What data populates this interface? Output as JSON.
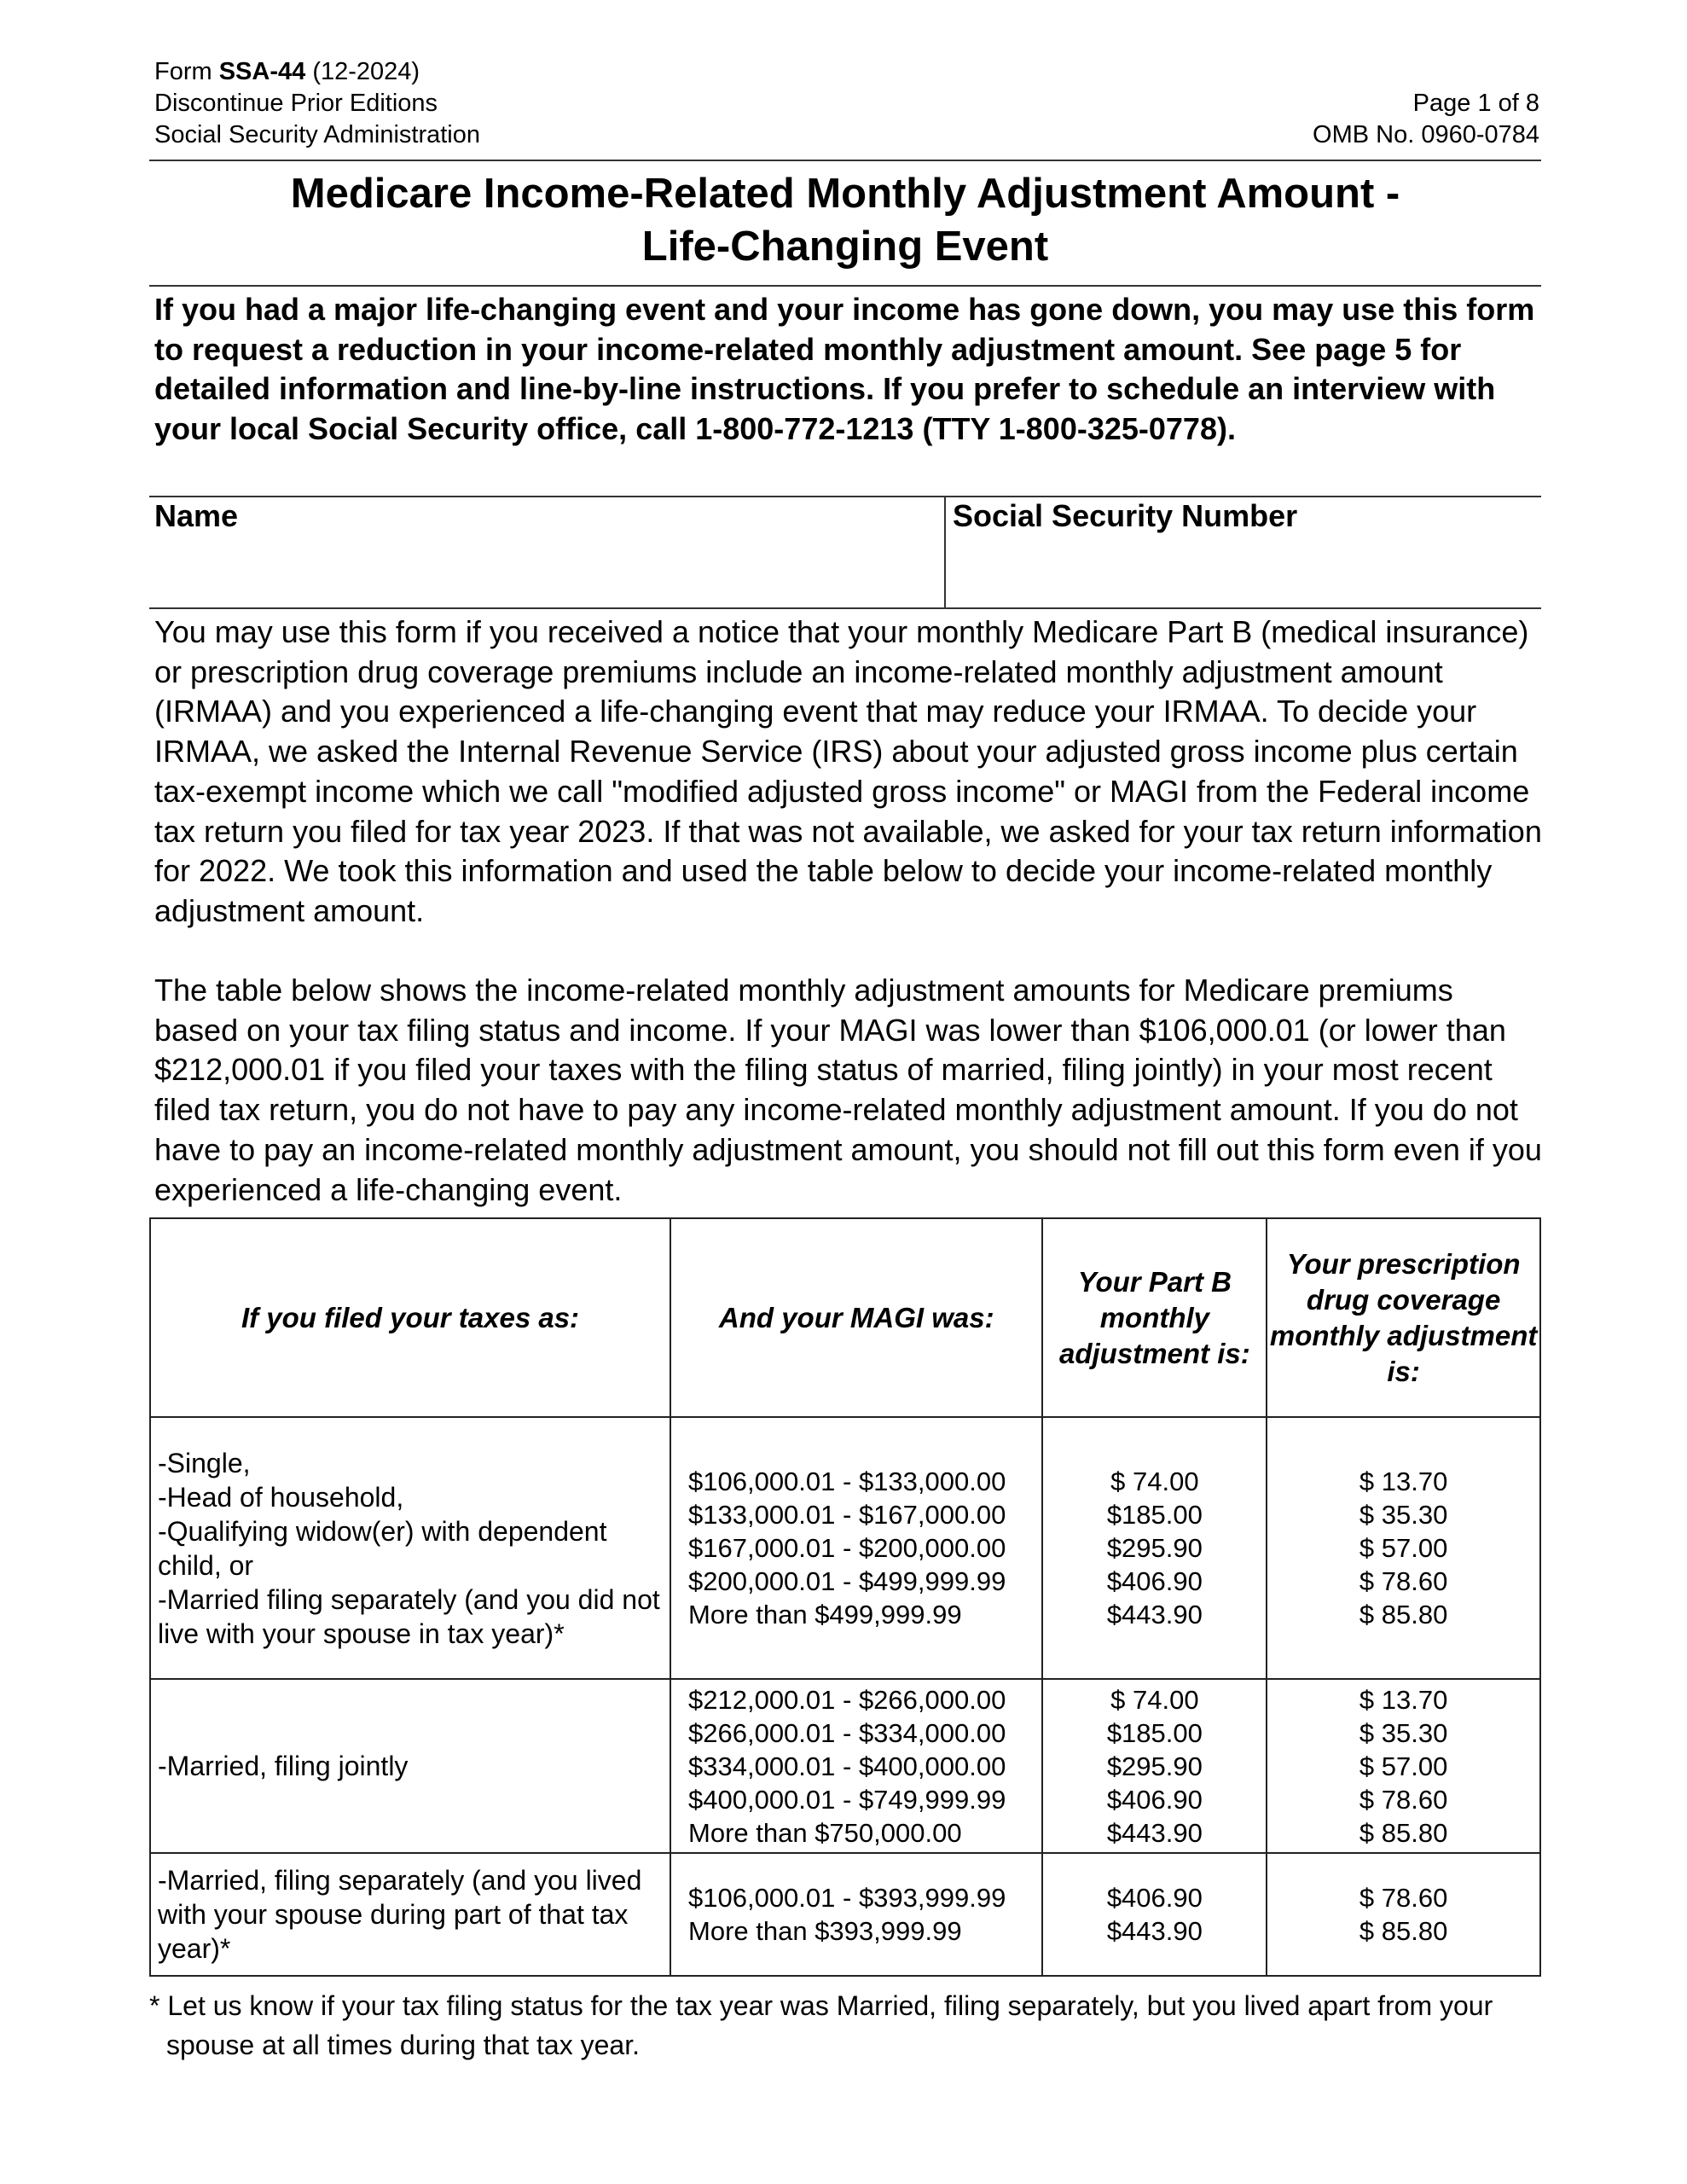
{
  "header": {
    "form_prefix": "Form ",
    "form_number": "SSA-44",
    "form_edition": " (12-2024)",
    "discontinue": "Discontinue Prior Editions",
    "agency": "Social Security Administration",
    "page": "Page 1 of 8",
    "omb": "OMB No. 0960-0784"
  },
  "title": {
    "line1": "Medicare Income-Related Monthly Adjustment Amount -",
    "line2": "Life-Changing Event"
  },
  "intro": "If you had a major life-changing event and your income has gone down, you may use this form to request a reduction in your income-related monthly adjustment amount. See page 5 for detailed information and line-by-line instructions. If you prefer to schedule an interview with your local Social Security office, call 1-800-772-1213 (TTY 1-800-325-0778).",
  "fields": {
    "name_label": "Name",
    "name_value": "",
    "ssn_label": "Social Security Number",
    "ssn_value": ""
  },
  "paragraph1": "You may use this form if you received a notice that your monthly Medicare Part B (medical insurance) or prescription drug coverage premiums include an income-related monthly adjustment amount (IRMAA) and you experienced a life-changing event that may reduce your IRMAA. To decide your IRMAA, we asked the Internal Revenue Service (IRS) about your adjusted gross income plus certain tax-exempt income which we call \"modified adjusted gross income\" or MAGI from the Federal income tax return you filed for tax year 2023. If that was not available, we asked for your tax return information for 2022. We took this information and used the table below to decide your income-related monthly adjustment amount.",
  "paragraph2": "The table below shows the income-related monthly adjustment amounts for Medicare premiums based on your tax filing status and income. If your MAGI was lower than $106,000.01 (or lower than $212,000.01 if you filed your taxes with the filing status of married, filing jointly) in your most recent filed tax return, you do not have to pay any income-related monthly adjustment amount.  If you do not have to pay an income-related monthly adjustment amount, you should not fill out this form even if you experienced a life-changing event.",
  "table": {
    "headers": [
      "If you filed your taxes as:",
      "And your MAGI was:",
      "Your Part B monthly adjustment is:",
      "Your prescription drug coverage monthly adjustment is:"
    ],
    "rows": [
      {
        "status": [
          "-Single,",
          "-Head of household,",
          "-Qualifying widow(er) with dependent child, or",
          "-Married filing separately (and you did not live with your spouse in tax year)*"
        ],
        "magi": [
          "$106,000.01 - $133,000.00",
          "$133,000.01 - $167,000.00",
          "$167,000.01 - $200,000.00",
          "$200,000.01 - $499,999.99",
          "More than $499,999.99"
        ],
        "partb": [
          "$ 74.00",
          "$185.00",
          "$295.90",
          "$406.90",
          "$443.90"
        ],
        "drug": [
          "$ 13.70",
          "$ 35.30",
          "$ 57.00",
          "$ 78.60",
          "$ 85.80"
        ]
      },
      {
        "status": [
          "-Married, filing jointly"
        ],
        "magi": [
          "$212,000.01 - $266,000.00",
          "$266,000.01 - $334,000.00",
          "$334,000.01 - $400,000.00",
          "$400,000.01 - $749,999.99",
          "More than $750,000.00"
        ],
        "partb": [
          "$ 74.00",
          "$185.00",
          "$295.90",
          "$406.90",
          "$443.90"
        ],
        "drug": [
          "$ 13.70",
          "$ 35.30",
          "$ 57.00",
          "$ 78.60",
          "$ 85.80"
        ]
      },
      {
        "status": [
          "-Married, filing separately (and you lived with your spouse during part of that tax  year)*"
        ],
        "magi": [
          "$106,000.01 - $393,999.99",
          "More than $393,999.99"
        ],
        "partb": [
          "$406.90",
          "$443.90"
        ],
        "drug": [
          "$ 78.60",
          "$ 85.80"
        ]
      }
    ]
  },
  "footnote": "* Let us know if your tax filing status for the tax year was Married, filing separately, but you lived apart from your spouse at all times during that tax year."
}
